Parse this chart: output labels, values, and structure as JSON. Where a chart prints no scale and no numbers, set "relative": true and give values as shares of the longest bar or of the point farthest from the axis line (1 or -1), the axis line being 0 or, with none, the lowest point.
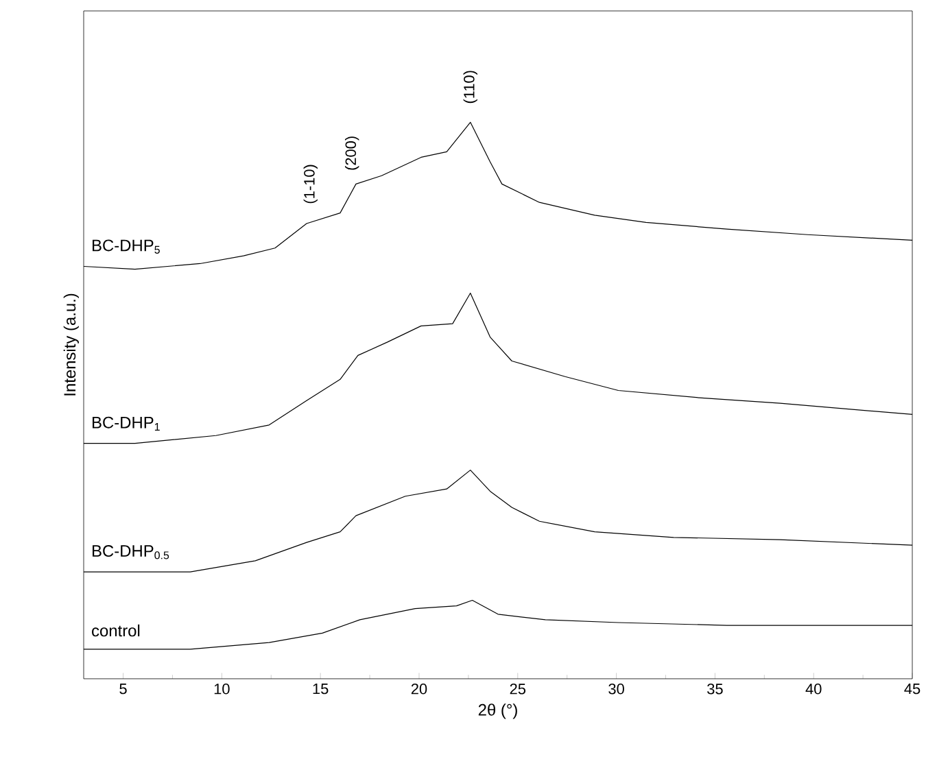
{
  "chart_data": {
    "type": "line",
    "relative": true,
    "xlabel": "2θ (°)",
    "ylabel": "Intensity (a.u.)",
    "xlim": [
      3,
      45
    ],
    "xticks": [
      5,
      10,
      15,
      20,
      25,
      30,
      35,
      40,
      45
    ],
    "legend": false,
    "marker": "none",
    "line_style": "solid",
    "annotations": [
      {
        "text": "(1-10)",
        "x": 14.5,
        "y": 0.82
      },
      {
        "text": "(200)",
        "x": 16.6,
        "y": 0.88
      },
      {
        "text": "(110)",
        "x": 22.6,
        "y": 1.0
      }
    ],
    "series": [
      {
        "name": "BC-DHP$_{5}$",
        "color": "#000000",
        "x": [
          3,
          5.6,
          8.9,
          11.1,
          12.7,
          14.3,
          16.0,
          16.8,
          18.1,
          20.1,
          21.4,
          22.6,
          23.6,
          24.2,
          26.1,
          28.9,
          31.5,
          35.6,
          39.7,
          45
        ],
        "values": [
          0.741,
          0.736,
          0.746,
          0.76,
          0.774,
          0.818,
          0.837,
          0.889,
          0.904,
          0.937,
          0.947,
          1.0,
          0.929,
          0.889,
          0.856,
          0.833,
          0.82,
          0.808,
          0.798,
          0.788
        ]
      },
      {
        "name": "BC-DHP$_{1}$",
        "color": "#000000",
        "x": [
          3,
          5.6,
          9.7,
          12.4,
          14.3,
          16.0,
          16.9,
          18.4,
          20.1,
          21.7,
          22.6,
          23.6,
          24.7,
          27.4,
          30.1,
          34.2,
          38.3,
          45
        ],
        "values": [
          0.423,
          0.423,
          0.437,
          0.456,
          0.5,
          0.538,
          0.581,
          0.605,
          0.634,
          0.638,
          0.693,
          0.614,
          0.571,
          0.543,
          0.518,
          0.505,
          0.495,
          0.475
        ]
      },
      {
        "name": "BC-DHP$_{0.5}$",
        "color": "#000000",
        "x": [
          3,
          8.4,
          11.7,
          14.3,
          16.0,
          16.8,
          19.3,
          21.4,
          22.6,
          23.6,
          24.7,
          26.1,
          28.9,
          32.9,
          38.3,
          45
        ],
        "values": [
          0.192,
          0.192,
          0.212,
          0.245,
          0.264,
          0.293,
          0.328,
          0.341,
          0.375,
          0.337,
          0.308,
          0.283,
          0.264,
          0.254,
          0.25,
          0.24
        ]
      },
      {
        "name": "control",
        "color": "#000000",
        "x": [
          3,
          8.4,
          12.4,
          15.1,
          17.0,
          19.8,
          21.9,
          22.7,
          24.0,
          26.4,
          30.1,
          35.6,
          45
        ],
        "values": [
          0.053,
          0.053,
          0.065,
          0.082,
          0.106,
          0.126,
          0.131,
          0.141,
          0.116,
          0.106,
          0.101,
          0.096,
          0.096
        ]
      }
    ]
  }
}
